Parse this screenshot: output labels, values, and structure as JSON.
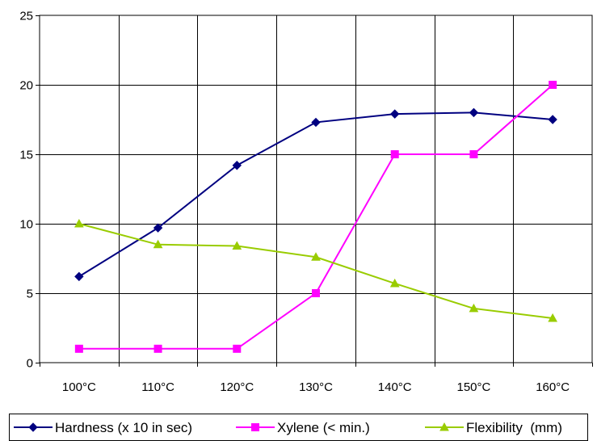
{
  "chart_data": {
    "type": "line",
    "title": "",
    "xlabel": "",
    "ylabel": "",
    "categories": [
      "100°C",
      "110°C",
      "120°C",
      "130°C",
      "140°C",
      "150°C",
      "160°C"
    ],
    "ylim": [
      0,
      25
    ],
    "yticks": [
      "0",
      "5",
      "10",
      "15",
      "20",
      "25"
    ],
    "grid": true,
    "legend_position": "bottom",
    "series": [
      {
        "name": "Hardness (x 10 in sec)",
        "values": [
          6.2,
          9.7,
          14.2,
          17.3,
          17.9,
          18.0,
          17.5
        ],
        "color": "#000080",
        "marker": "diamond"
      },
      {
        "name": "Xylene (< min.)",
        "values": [
          1,
          1,
          1,
          5,
          15,
          15,
          20
        ],
        "color": "#FF00FF",
        "marker": "square"
      },
      {
        "name": "Flexibility  (mm)",
        "values": [
          10,
          8.5,
          8.4,
          7.6,
          5.7,
          3.9,
          3.2
        ],
        "color": "#99CC00",
        "marker": "triangle"
      }
    ]
  }
}
